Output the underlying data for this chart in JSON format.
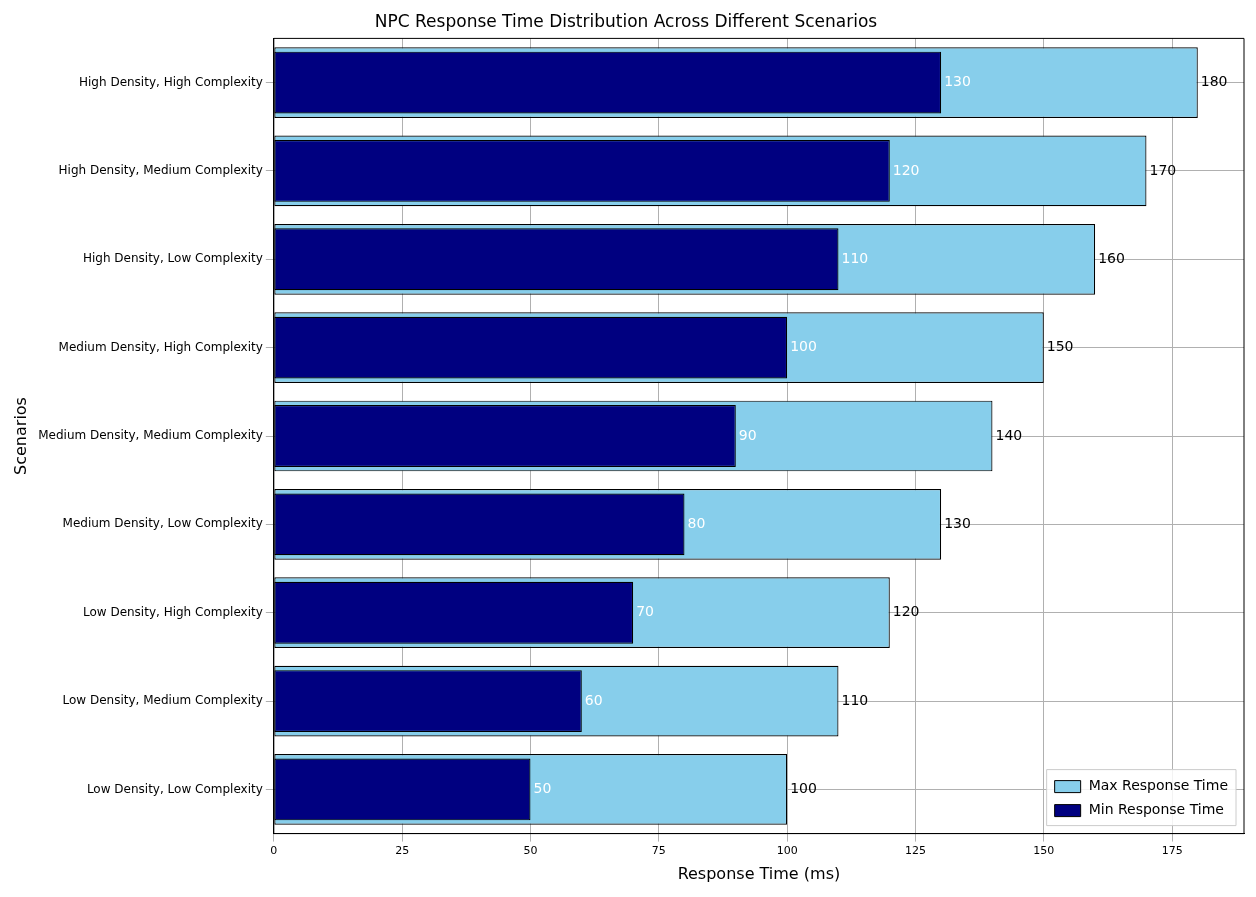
{
  "chart_data": {
    "type": "bar",
    "orientation": "horizontal",
    "title": "NPC Response Time Distribution Across Different Scenarios",
    "xlabel": "Response Time (ms)",
    "ylabel": "Scenarios",
    "categories": [
      "High Density, High Complexity",
      "High Density, Medium Complexity",
      "High Density, Low Complexity",
      "Medium Density, High Complexity",
      "Medium Density, Medium Complexity",
      "Medium Density, Low Complexity",
      "Low Density, High Complexity",
      "Low Density, Medium Complexity",
      "Low Density, Low Complexity"
    ],
    "series": [
      {
        "name": "Max Response Time",
        "color": "#87ceeb",
        "values": [
          180,
          170,
          160,
          150,
          140,
          130,
          120,
          110,
          100
        ]
      },
      {
        "name": "Min Response Time",
        "color": "#000080",
        "values": [
          130,
          120,
          110,
          100,
          90,
          80,
          70,
          60,
          50
        ]
      }
    ],
    "xlim": [
      0,
      189
    ],
    "xticks": [
      0,
      25,
      50,
      75,
      100,
      125,
      150,
      175
    ],
    "grid": true,
    "legend": "bottom right",
    "data_labels": true
  }
}
